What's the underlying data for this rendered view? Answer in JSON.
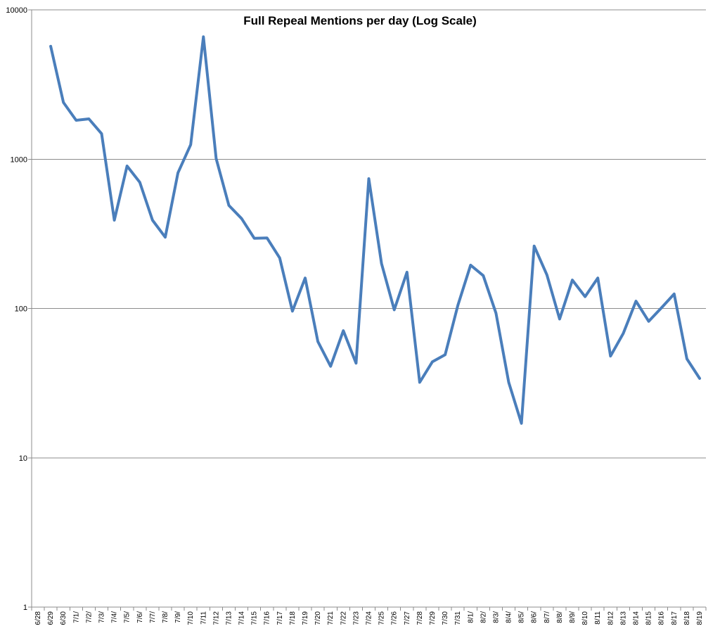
{
  "chart_data": {
    "type": "line",
    "title": "Full Repeal Mentions per day (Log Scale)",
    "xlabel": "",
    "ylabel": "",
    "yscale": "log",
    "ylim": [
      1,
      10000
    ],
    "grid": true,
    "legend": "none",
    "y_ticks": [
      "1",
      "10",
      "100",
      "1000",
      "10000"
    ],
    "categories": [
      "6/28",
      "6/29",
      "6/30",
      "7/1/",
      "7/2/",
      "7/3/",
      "7/4/",
      "7/5/",
      "7/6/",
      "7/7/",
      "7/8/",
      "7/9/",
      "7/10",
      "7/11",
      "7/12",
      "7/13",
      "7/14",
      "7/15",
      "7/16",
      "7/17",
      "7/18",
      "7/19",
      "7/20",
      "7/21",
      "7/22",
      "7/23",
      "7/24",
      "7/25",
      "7/26",
      "7/27",
      "7/28",
      "7/29",
      "7/30",
      "7/31",
      "8/1/",
      "8/2/",
      "8/3/",
      "8/4/",
      "8/5/",
      "8/6/",
      "8/7/",
      "8/8/",
      "8/9/",
      "8/10",
      "8/11",
      "8/12",
      "8/13",
      "8/14",
      "8/15",
      "8/16",
      "8/17",
      "8/18",
      "8/19"
    ],
    "series": [
      {
        "color": "#4A7EBB",
        "values": [
          null,
          5700,
          2400,
          1820,
          1860,
          1480,
          390,
          900,
          700,
          390,
          300,
          810,
          1250,
          6600,
          1010,
          490,
          400,
          295,
          297,
          218,
          96,
          160,
          60,
          41,
          71,
          43,
          740,
          200,
          98,
          175,
          32,
          44,
          49,
          105,
          195,
          166,
          93,
          32,
          17,
          262,
          168,
          85,
          155,
          120,
          160,
          48,
          68,
          112,
          82,
          101,
          125,
          46,
          34
        ]
      }
    ]
  }
}
